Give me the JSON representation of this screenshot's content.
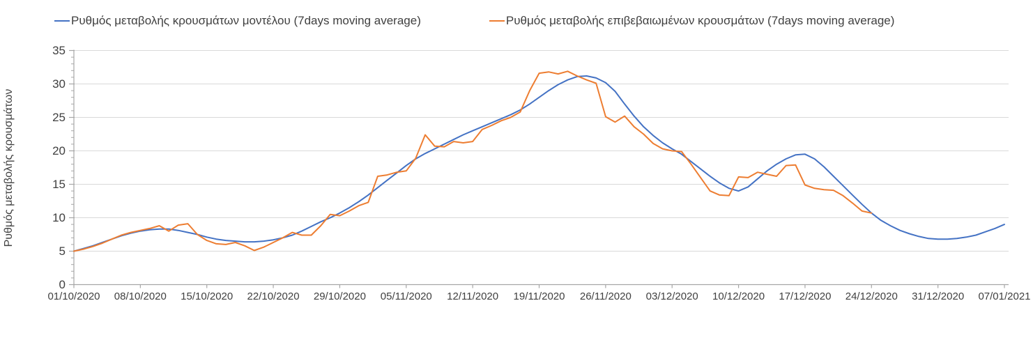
{
  "legend": {
    "items": [
      {
        "label": "Ρυθμός μεταβολής κρουσμάτων μοντέλου (7days moving average)",
        "color": "#4472C4"
      },
      {
        "label": "Ρυθμός μεταβολής επιβεβαιωμένων κρουσμάτων (7days moving average)",
        "color": "#ED7D31"
      }
    ]
  },
  "y_axis": {
    "title": "Ρυθμός μεταβολής κρουσμάτων",
    "ticks": [
      0,
      5,
      10,
      15,
      20,
      25,
      30,
      35
    ],
    "minor_step": 1
  },
  "x_axis": {
    "tick_labels": [
      "01/10/2020",
      "08/10/2020",
      "15/10/2020",
      "22/10/2020",
      "29/10/2020",
      "05/11/2020",
      "12/11/2020",
      "19/11/2020",
      "26/11/2020",
      "03/12/2020",
      "10/12/2020",
      "17/12/2020",
      "24/12/2020",
      "31/12/2020",
      "07/01/2021"
    ],
    "days_between_ticks": 7
  },
  "colors": {
    "grid": "#D9D9D9",
    "axis": "#A6A6A6",
    "text": "#404040",
    "series_model": "#4472C4",
    "series_confirmed": "#ED7D31"
  },
  "chart_data": {
    "type": "line",
    "title": "",
    "xlabel": "",
    "ylabel": "Ρυθμός μεταβολής κρουσμάτων",
    "ylim": [
      0,
      35
    ],
    "grid": "horizontal",
    "legend_position": "top",
    "x_start_date": "01/10/2020",
    "x_end_date": "07/01/2021",
    "x_unit": "days (daily points, day 0 = 01/10/2020)",
    "x_tick_labels": [
      "01/10/2020",
      "08/10/2020",
      "15/10/2020",
      "22/10/2020",
      "29/10/2020",
      "05/11/2020",
      "12/11/2020",
      "19/11/2020",
      "26/11/2020",
      "03/12/2020",
      "10/12/2020",
      "17/12/2020",
      "24/12/2020",
      "31/12/2020",
      "07/01/2021"
    ],
    "series": [
      {
        "name": "Ρυθμός μεταβολής κρουσμάτων μοντέλου (7days moving average)",
        "color": "#4472C4",
        "start_day": 0,
        "values": [
          5.0,
          5.4,
          5.8,
          6.3,
          6.8,
          7.3,
          7.7,
          8.0,
          8.2,
          8.3,
          8.3,
          8.1,
          7.8,
          7.5,
          7.1,
          6.8,
          6.6,
          6.5,
          6.4,
          6.4,
          6.5,
          6.7,
          7.0,
          7.4,
          8.0,
          8.7,
          9.4,
          10.0,
          10.7,
          11.5,
          12.4,
          13.4,
          14.5,
          15.6,
          16.7,
          17.8,
          18.8,
          19.6,
          20.3,
          21.0,
          21.7,
          22.4,
          23.0,
          23.6,
          24.2,
          24.8,
          25.4,
          26.1,
          27.0,
          28.0,
          29.0,
          29.9,
          30.6,
          31.1,
          31.2,
          30.9,
          30.2,
          28.9,
          27.0,
          25.2,
          23.6,
          22.3,
          21.2,
          20.3,
          19.5,
          18.4,
          17.3,
          16.2,
          15.2,
          14.4,
          14.0,
          14.6,
          15.8,
          17.0,
          18.0,
          18.8,
          19.4,
          19.5,
          18.8,
          17.6,
          16.2,
          14.8,
          13.4,
          12.0,
          10.7,
          9.6,
          8.8,
          8.1,
          7.6,
          7.2,
          6.9,
          6.8,
          6.8,
          6.9,
          7.1,
          7.4,
          7.9,
          8.4,
          9.0
        ]
      },
      {
        "name": "Ρυθμός μεταβολής επιβεβαιωμένων κρουσμάτων (7days moving average)",
        "color": "#ED7D31",
        "start_day": 0,
        "values": [
          5.0,
          5.3,
          5.7,
          6.2,
          6.8,
          7.4,
          7.8,
          8.1,
          8.4,
          8.8,
          8.0,
          8.9,
          9.1,
          7.5,
          6.6,
          6.1,
          6.0,
          6.3,
          5.8,
          5.1,
          5.6,
          6.3,
          7.0,
          7.8,
          7.4,
          7.4,
          8.8,
          10.5,
          10.3,
          11.0,
          11.8,
          12.3,
          16.2,
          16.4,
          16.8,
          17.0,
          18.9,
          22.4,
          20.7,
          20.6,
          21.4,
          21.2,
          21.4,
          23.2,
          23.8,
          24.5,
          25.0,
          25.8,
          29.0,
          31.6,
          31.8,
          31.5,
          31.9,
          31.2,
          30.6,
          30.1,
          25.1,
          24.3,
          25.2,
          23.6,
          22.5,
          21.1,
          20.3,
          20.0,
          19.9,
          18.0,
          16.0,
          14.0,
          13.4,
          13.3,
          16.1,
          16.0,
          16.8,
          16.5,
          16.2,
          17.8,
          17.9,
          14.9,
          14.4,
          14.2,
          14.1,
          13.3,
          12.2,
          11.0,
          10.7
        ]
      }
    ]
  }
}
